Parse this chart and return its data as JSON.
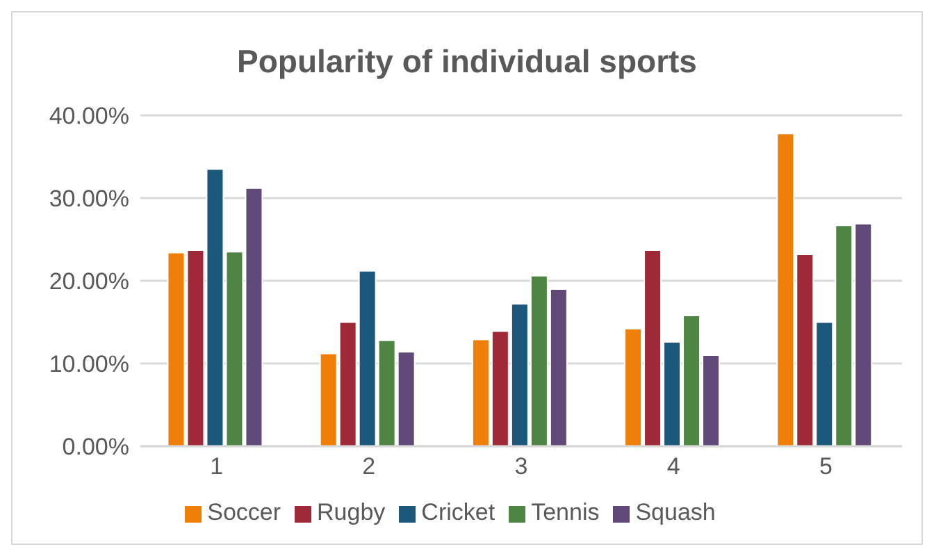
{
  "chart_data": {
    "type": "bar",
    "title": "Popularity of individual sports",
    "categories": [
      "1",
      "2",
      "3",
      "4",
      "5"
    ],
    "series": [
      {
        "name": "Soccer",
        "color": "#f07f09",
        "values": [
          23.4,
          11.2,
          12.9,
          14.2,
          37.8
        ]
      },
      {
        "name": "Rugby",
        "color": "#9f2936",
        "values": [
          23.7,
          15.0,
          13.9,
          23.7,
          23.2
        ]
      },
      {
        "name": "Cricket",
        "color": "#1b587c",
        "values": [
          33.5,
          21.2,
          17.2,
          12.6,
          15.0
        ]
      },
      {
        "name": "Tennis",
        "color": "#4e8542",
        "values": [
          23.5,
          12.8,
          20.6,
          15.8,
          26.7
        ]
      },
      {
        "name": "Squash",
        "color": "#604878",
        "values": [
          31.2,
          11.4,
          19.0,
          11.0,
          26.9
        ]
      }
    ],
    "ylim": [
      0,
      40
    ],
    "yticks": [
      {
        "value": 0,
        "label": "0.00%"
      },
      {
        "value": 10,
        "label": "10.00%"
      },
      {
        "value": 20,
        "label": "20.00%"
      },
      {
        "value": 30,
        "label": "30.00%"
      },
      {
        "value": 40,
        "label": "40.00%"
      }
    ],
    "grid": "y",
    "legend": "bottom"
  }
}
